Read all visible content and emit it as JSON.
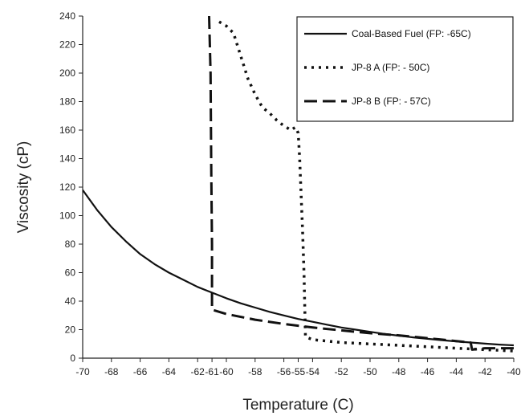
{
  "chart_data": {
    "type": "line",
    "title": "",
    "xlabel": "Temperature (C)",
    "ylabel": "Viscosity (cP)",
    "xlim": [
      -70,
      -40
    ],
    "ylim": [
      0,
      240
    ],
    "x_ticks": [
      -70,
      -68,
      -66,
      -64,
      -62,
      -61,
      -60,
      -58,
      -56,
      -55,
      -54,
      -52,
      -50,
      -48,
      -46,
      -44,
      -42,
      -40
    ],
    "y_ticks": [
      0,
      20,
      40,
      60,
      80,
      100,
      120,
      140,
      160,
      180,
      200,
      220,
      240
    ],
    "grid": false,
    "legend_position": "top-right",
    "series": [
      {
        "name": "Coal-Based Fuel (FP: -65C)",
        "style": "solid",
        "x": [
          -70,
          -69,
          -68,
          -67,
          -66,
          -65,
          -64,
          -63,
          -62,
          -61,
          -60,
          -59,
          -58,
          -57,
          -56,
          -55,
          -54,
          -53,
          -52,
          -51,
          -50,
          -49,
          -48,
          -47,
          -46,
          -45,
          -44,
          -43,
          -42,
          -41,
          -40
        ],
        "y": [
          118,
          104,
          92,
          82,
          73,
          66,
          60,
          55,
          50,
          46,
          42,
          38.5,
          35.5,
          32.5,
          30,
          27.5,
          25.5,
          23.5,
          21.5,
          20,
          18.5,
          17,
          15.8,
          14.6,
          13.6,
          12.6,
          11.8,
          11,
          10.2,
          9.5,
          9
        ]
      },
      {
        "name": "JP-8 A (FP: - 50C)",
        "style": "dotted",
        "x": [
          -60.5,
          -60,
          -59.5,
          -59,
          -58.5,
          -58,
          -57.5,
          -57,
          -56.5,
          -56,
          -55.5,
          -55.2,
          -55,
          -54.9,
          -54.8,
          -54.7,
          -54.6,
          -54.5,
          -54,
          -52,
          -50,
          -48,
          -46,
          -44,
          -42,
          -40
        ],
        "y": [
          236,
          233,
          228,
          212,
          196,
          185,
          176,
          172,
          167,
          163,
          160,
          162,
          158,
          140,
          115,
          90,
          60,
          15,
          13,
          11,
          10,
          9,
          8,
          7,
          6,
          5
        ]
      },
      {
        "name": "JP-8 B (FP: - 57C)",
        "style": "dashed",
        "x": [
          -61.2,
          -61.1,
          -61.05,
          -61,
          -61,
          -61,
          -60,
          -58,
          -56,
          -54,
          -52,
          -50,
          -48,
          -46,
          -44,
          -43,
          -42.9,
          -42,
          -40
        ],
        "y": [
          240,
          200,
          130,
          80,
          45,
          34,
          31,
          27,
          24,
          21.5,
          19.5,
          17.5,
          16,
          14,
          12,
          11,
          6,
          7,
          7
        ]
      }
    ]
  }
}
